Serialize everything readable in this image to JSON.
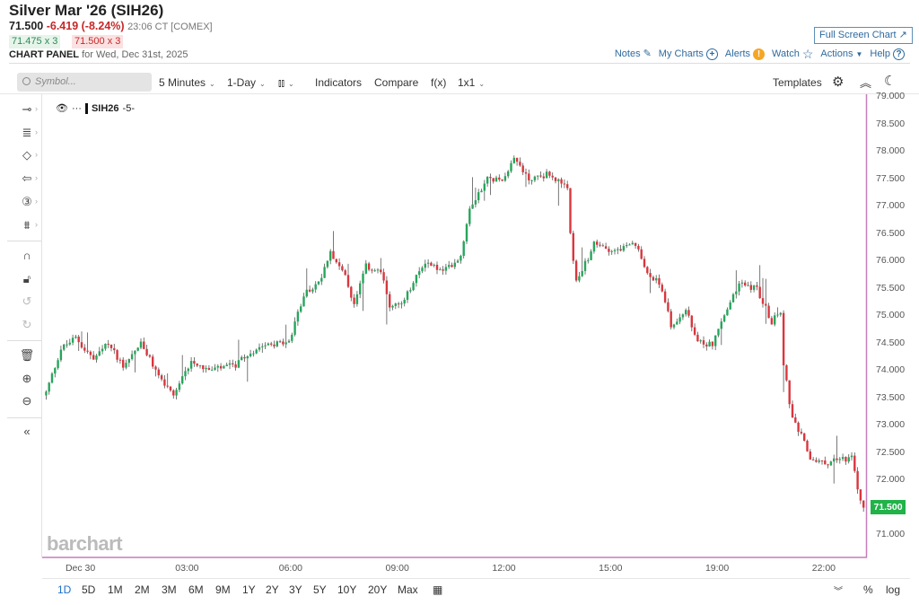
{
  "header": {
    "title": "Silver Mar '26 (SIH26)",
    "last": "71.500",
    "change": "-6.419 (-8.24%)",
    "time": "23:06 CT [COMEX]",
    "bid": "71.475 x 3",
    "ask": "71.500 x 3",
    "panel_label": "CHART PANEL",
    "panel_date": "for Wed, Dec 31st, 2025",
    "full_screen": "Full Screen Chart"
  },
  "links": {
    "notes": "Notes",
    "my_charts": "My Charts",
    "alerts": "Alerts",
    "watch": "Watch",
    "actions": "Actions",
    "help": "Help"
  },
  "toolbar": {
    "search_placeholder": "Symbol...",
    "interval": "5 Minutes",
    "range": "1-Day",
    "chart_type_icon": "candlestick-icon",
    "indicators": "Indicators",
    "compare": "Compare",
    "fx": "f(x)",
    "layout": "1x1",
    "templates": "Templates"
  },
  "legend": {
    "symbol": "SIH26",
    "interval": "-5-"
  },
  "branding": "barchart",
  "bottom": {
    "timeframes": [
      "1D",
      "5D",
      "1M",
      "2M",
      "3M",
      "6M",
      "9M",
      "1Y",
      "2Y",
      "3Y",
      "5Y",
      "10Y",
      "20Y",
      "Max"
    ],
    "active": "1D",
    "percent": "%",
    "log": "log"
  },
  "colors": {
    "up": "#26a65b",
    "down": "#d9363e",
    "accent": "#2e6a9e",
    "last_price_bg": "#21b24a",
    "border": "#c77dbb"
  },
  "chart_data": {
    "type": "candlestick",
    "symbol": "SIH26",
    "interval": "5 Minutes",
    "last_price": "71.500",
    "ylim": [
      70.6,
      79.05
    ],
    "y_ticks": [
      "79.000",
      "78.500",
      "78.000",
      "77.500",
      "77.000",
      "76.500",
      "76.000",
      "75.500",
      "75.000",
      "74.500",
      "74.000",
      "73.500",
      "73.000",
      "72.500",
      "72.000",
      "71.000"
    ],
    "x_ticks": [
      {
        "label": "Dec 30",
        "bar": 12
      },
      {
        "label": "03:00",
        "bar": 48
      },
      {
        "label": "06:00",
        "bar": 83
      },
      {
        "label": "09:00",
        "bar": 119
      },
      {
        "label": "12:00",
        "bar": 155
      },
      {
        "label": "15:00",
        "bar": 191
      },
      {
        "label": "19:00",
        "bar": 227
      },
      {
        "label": "22:00",
        "bar": 263
      }
    ],
    "bar_count": 277,
    "close_waypoints": [
      [
        0,
        73.6
      ],
      [
        5,
        74.4
      ],
      [
        10,
        74.6
      ],
      [
        16,
        74.2
      ],
      [
        21,
        74.5
      ],
      [
        26,
        74.1
      ],
      [
        32,
        74.5
      ],
      [
        37,
        74.0
      ],
      [
        43,
        73.5
      ],
      [
        49,
        74.2
      ],
      [
        55,
        74.0
      ],
      [
        64,
        74.1
      ],
      [
        73,
        74.5
      ],
      [
        82,
        74.5
      ],
      [
        87,
        75.4
      ],
      [
        92,
        75.6
      ],
      [
        96,
        76.2
      ],
      [
        101,
        75.7
      ],
      [
        104,
        75.2
      ],
      [
        108,
        75.9
      ],
      [
        113,
        75.8
      ],
      [
        116,
        75.2
      ],
      [
        120,
        75.2
      ],
      [
        125,
        75.7
      ],
      [
        128,
        76.0
      ],
      [
        134,
        75.8
      ],
      [
        140,
        76.1
      ],
      [
        143,
        77.0
      ],
      [
        149,
        77.5
      ],
      [
        154,
        77.5
      ],
      [
        158,
        77.9
      ],
      [
        163,
        77.5
      ],
      [
        170,
        77.6
      ],
      [
        176,
        77.3
      ],
      [
        177,
        76.5
      ],
      [
        179,
        75.6
      ],
      [
        185,
        76.3
      ],
      [
        192,
        76.2
      ],
      [
        199,
        76.3
      ],
      [
        202,
        75.9
      ],
      [
        208,
        75.5
      ],
      [
        211,
        74.8
      ],
      [
        216,
        75.1
      ],
      [
        220,
        74.5
      ],
      [
        225,
        74.5
      ],
      [
        229,
        75.0
      ],
      [
        234,
        75.6
      ],
      [
        240,
        75.5
      ],
      [
        245,
        74.9
      ],
      [
        248,
        75.1
      ],
      [
        249,
        74.1
      ],
      [
        252,
        73.1
      ],
      [
        255,
        72.8
      ],
      [
        258,
        72.4
      ],
      [
        263,
        72.3
      ],
      [
        267,
        72.4
      ],
      [
        272,
        72.4
      ],
      [
        275,
        71.6
      ],
      [
        276,
        71.5
      ]
    ]
  }
}
